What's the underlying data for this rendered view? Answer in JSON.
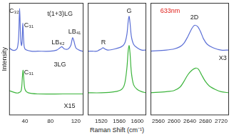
{
  "chart_data": [
    {
      "type": "line",
      "ylabel": "Intensity",
      "xlim": [
        15,
        132
      ],
      "xticks": [
        40,
        80,
        120
      ],
      "ylim": [
        0,
        100
      ],
      "tick_labels": "x",
      "series": [
        {
          "color": "#5b6fd6",
          "x": [
            15,
            20,
            25,
            28,
            30,
            31.5,
            33,
            34.5,
            35.5,
            36.5,
            38,
            40,
            50,
            60,
            80,
            90,
            95,
            98,
            102,
            108,
            112,
            114,
            115,
            117,
            120,
            125,
            130,
            132
          ],
          "values": [
            60,
            58,
            58,
            60,
            70,
            95,
            70,
            62,
            66,
            82,
            66,
            59,
            57,
            57,
            57,
            58,
            60,
            61,
            59,
            59,
            62,
            67,
            69,
            66,
            60,
            58,
            57,
            57
          ]
        },
        {
          "color": "#3cb43c",
          "x": [
            15,
            25,
            30,
            34,
            36,
            37,
            38,
            40,
            45,
            60,
            100,
            132
          ],
          "values": [
            22,
            20,
            20,
            22,
            35,
            40,
            33,
            23,
            20,
            19,
            19,
            19
          ]
        }
      ],
      "annotations": [
        {
          "text": "C₃₂",
          "x": 23,
          "y": 93
        },
        {
          "text": "C₃₁",
          "x": 46,
          "y": 80
        },
        {
          "text": "LB₄₂",
          "x": 92,
          "y": 65
        },
        {
          "text": "LB₄₁",
          "x": 118,
          "y": 74
        },
        {
          "text": "t(1+3)LG",
          "x": 95,
          "y": 90
        },
        {
          "text": "3LG",
          "x": 95,
          "y": 45
        },
        {
          "text": "C₃₁",
          "x": 46,
          "y": 38
        },
        {
          "text": "X15",
          "x": 110,
          "y": 8
        }
      ]
    },
    {
      "type": "line",
      "xlabel": "Raman Shift (cm⁻¹)",
      "xlim": [
        1490,
        1620
      ],
      "xticks": [
        1520,
        1560,
        1600
      ],
      "ylim": [
        0,
        100
      ],
      "tick_labels": "x",
      "series": [
        {
          "color": "#5b6fd6",
          "x": [
            1490,
            1500,
            1510,
            1515,
            1520,
            1524,
            1528,
            1535,
            1550,
            1565,
            1572,
            1577,
            1580,
            1582,
            1584,
            1587,
            1592,
            1600,
            1610,
            1620
          ],
          "values": [
            57,
            57,
            57,
            58,
            59,
            60,
            59,
            58,
            59,
            61,
            64,
            72,
            84,
            88,
            82,
            70,
            63,
            60,
            58,
            58
          ]
        },
        {
          "color": "#3cb43c",
          "x": [
            1490,
            1520,
            1550,
            1565,
            1572,
            1577,
            1580,
            1582,
            1584,
            1587,
            1592,
            1600,
            1610,
            1620
          ],
          "values": [
            20,
            20,
            21,
            23,
            28,
            42,
            58,
            62,
            55,
            38,
            27,
            23,
            21,
            20
          ]
        }
      ],
      "annotations": [
        {
          "text": "R",
          "x": 1525,
          "y": 65
        },
        {
          "text": "G",
          "x": 1582,
          "y": 93
        }
      ]
    },
    {
      "type": "line",
      "xlim": [
        2540,
        2740
      ],
      "xticks": [
        2560,
        2600,
        2640,
        2680,
        2720
      ],
      "ylim": [
        0,
        100
      ],
      "tick_labels": "x",
      "series": [
        {
          "color": "#5b6fd6",
          "x": [
            2540,
            2580,
            2600,
            2615,
            2625,
            2635,
            2645,
            2652,
            2660,
            2668,
            2675,
            2685,
            2700,
            2720,
            2740
          ],
          "values": [
            57,
            58,
            59,
            61,
            64,
            70,
            77,
            80,
            79,
            74,
            68,
            63,
            60,
            58,
            58
          ]
        },
        {
          "color": "#3cb43c",
          "x": [
            2540,
            2580,
            2600,
            2615,
            2625,
            2635,
            2645,
            2655,
            2662,
            2670,
            2680,
            2690,
            2705,
            2720,
            2740
          ],
          "values": [
            20,
            21,
            22,
            25,
            30,
            36,
            40,
            42,
            41,
            36,
            30,
            26,
            23,
            21,
            20
          ]
        }
      ],
      "annotations": [
        {
          "text": "633nm",
          "x": 2590,
          "y": 93,
          "color": "#e0201b"
        },
        {
          "text": "2D",
          "x": 2652,
          "y": 87
        },
        {
          "text": "X3",
          "x": 2724,
          "y": 51
        }
      ]
    }
  ]
}
